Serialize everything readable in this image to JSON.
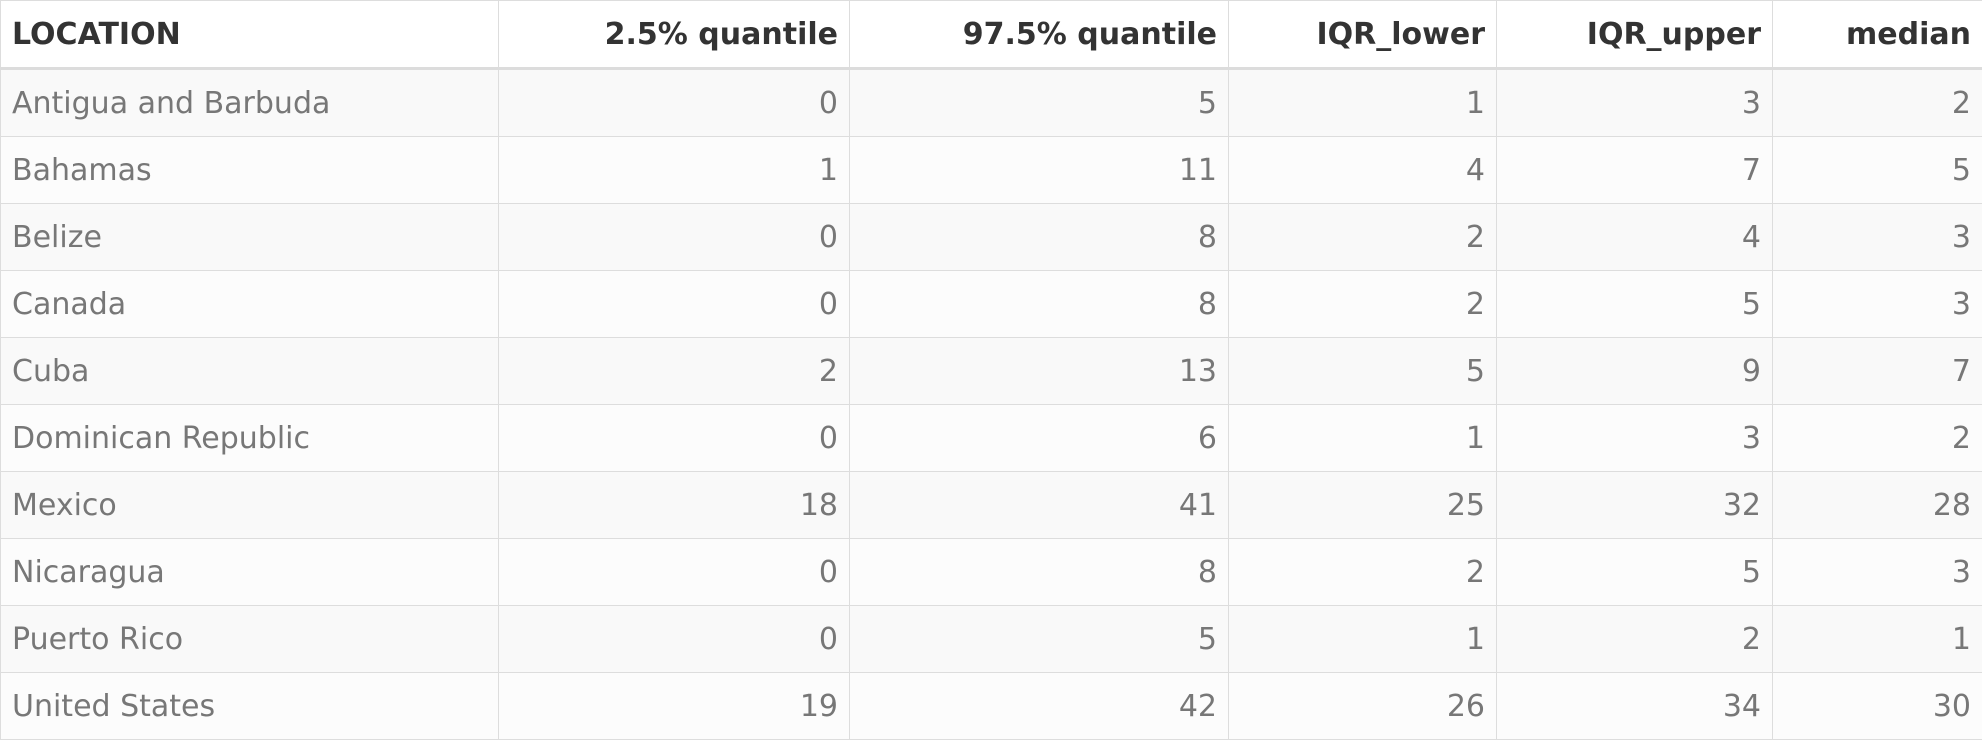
{
  "table": {
    "columns": [
      {
        "label": "LOCATION",
        "align": "left"
      },
      {
        "label": "2.5% quantile",
        "align": "right"
      },
      {
        "label": "97.5% quantile",
        "align": "right"
      },
      {
        "label": "IQR_lower",
        "align": "right"
      },
      {
        "label": "IQR_upper",
        "align": "right"
      },
      {
        "label": "median",
        "align": "right"
      }
    ],
    "rows": [
      [
        "Antigua and Barbuda",
        "0",
        "5",
        "1",
        "3",
        "2"
      ],
      [
        "Bahamas",
        "1",
        "11",
        "4",
        "7",
        "5"
      ],
      [
        "Belize",
        "0",
        "8",
        "2",
        "4",
        "3"
      ],
      [
        "Canada",
        "0",
        "8",
        "2",
        "5",
        "3"
      ],
      [
        "Cuba",
        "2",
        "13",
        "5",
        "9",
        "7"
      ],
      [
        "Dominican Republic",
        "0",
        "6",
        "1",
        "3",
        "2"
      ],
      [
        "Mexico",
        "18",
        "41",
        "25",
        "32",
        "28"
      ],
      [
        "Nicaragua",
        "0",
        "8",
        "2",
        "5",
        "3"
      ],
      [
        "Puerto Rico",
        "0",
        "5",
        "1",
        "2",
        "1"
      ],
      [
        "United States",
        "19",
        "42",
        "26",
        "34",
        "30"
      ]
    ]
  }
}
